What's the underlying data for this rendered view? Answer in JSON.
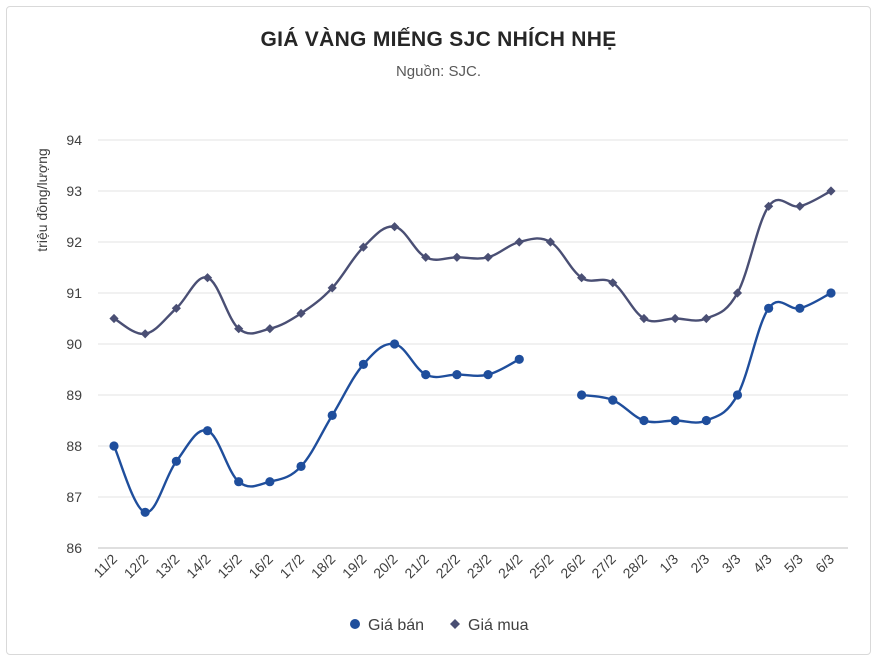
{
  "chart_data": {
    "type": "line",
    "title": "GIÁ VÀNG MIẾNG SJC NHÍCH NHẸ",
    "subtitle": "Nguồn: SJC.",
    "xlabel": "",
    "ylabel": "triệu đồng/lượng",
    "ylim": [
      86,
      94
    ],
    "yticks": [
      86,
      87,
      88,
      89,
      90,
      91,
      92,
      93,
      94
    ],
    "grid": true,
    "legend_position": "bottom",
    "categories": [
      "11/2",
      "12/2",
      "13/2",
      "14/2",
      "15/2",
      "16/2",
      "17/2",
      "18/2",
      "19/2",
      "20/2",
      "21/2",
      "22/2",
      "23/2",
      "24/2",
      "25/2",
      "26/2",
      "27/2",
      "28/2",
      "1/3",
      "2/3",
      "3/3",
      "4/3",
      "5/3",
      "6/3"
    ],
    "series": [
      {
        "name": "Giá bán",
        "color": "#1f4e9c",
        "marker": "circle",
        "values": [
          88.0,
          86.7,
          87.7,
          88.3,
          87.3,
          87.3,
          87.6,
          88.6,
          89.6,
          90.0,
          89.4,
          89.4,
          89.4,
          89.7,
          null,
          89.0,
          88.9,
          88.5,
          88.5,
          88.5,
          89.0,
          90.7,
          90.7,
          91.0
        ]
      },
      {
        "name": "Giá mua",
        "color": "#4a4f74",
        "marker": "diamond",
        "values": [
          90.5,
          90.2,
          90.7,
          91.3,
          90.3,
          90.3,
          90.6,
          91.1,
          91.9,
          92.3,
          91.7,
          91.7,
          91.7,
          92.0,
          92.0,
          91.3,
          91.2,
          90.5,
          90.5,
          90.5,
          91.0,
          92.7,
          92.7,
          93.0
        ]
      }
    ]
  }
}
